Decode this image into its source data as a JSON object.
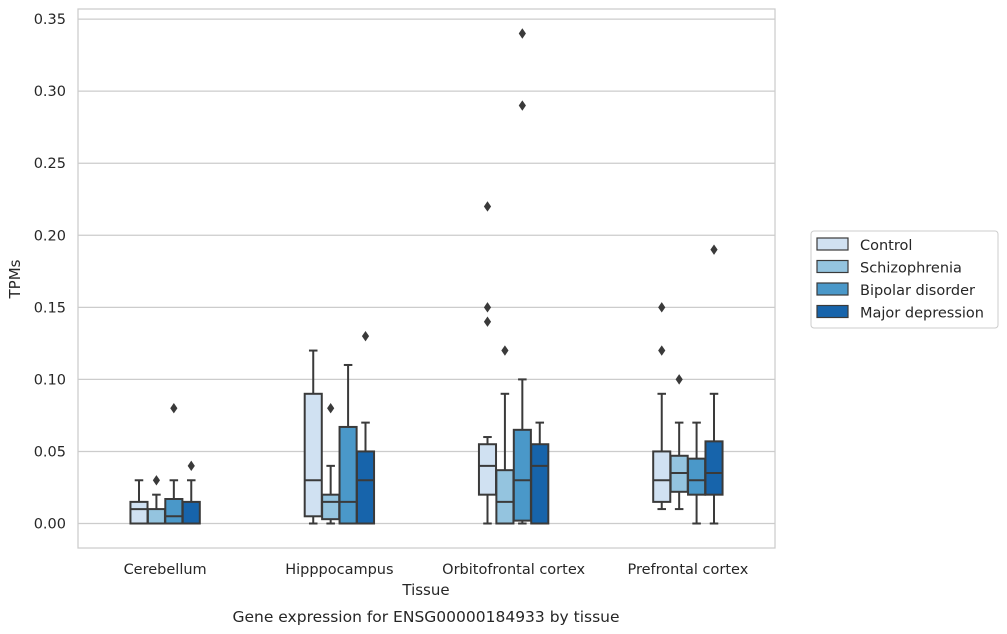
{
  "caption": "Gene expression for ENSG00000184933 by tissue",
  "chart_data": {
    "type": "boxplot",
    "xlabel": "Tissue",
    "ylabel": "TPMs",
    "ylim": [
      -0.017,
      0.357
    ],
    "yticks": [
      0.0,
      0.05,
      0.1,
      0.15,
      0.2,
      0.25,
      0.3,
      0.35
    ],
    "ytick_labels": [
      "0.00",
      "0.05",
      "0.10",
      "0.15",
      "0.20",
      "0.25",
      "0.30",
      "0.35"
    ],
    "grid": "horizontal",
    "legend_position": "right",
    "categories": [
      "Cerebellum",
      "Hipppocampus",
      "Orbitofrontal cortex",
      "Prefrontal cortex"
    ],
    "series": [
      {
        "name": "Control",
        "color": "#d0e1f2",
        "boxes": [
          {
            "whislo": 0.0,
            "q1": 0.0,
            "med": 0.01,
            "q3": 0.015,
            "whishi": 0.03,
            "fliers": []
          },
          {
            "whislo": 0.0,
            "q1": 0.005,
            "med": 0.03,
            "q3": 0.09,
            "whishi": 0.12,
            "fliers": []
          },
          {
            "whislo": 0.0,
            "q1": 0.02,
            "med": 0.04,
            "q3": 0.055,
            "whishi": 0.06,
            "fliers": [
              0.14,
              0.15,
              0.22
            ]
          },
          {
            "whislo": 0.01,
            "q1": 0.015,
            "med": 0.03,
            "q3": 0.05,
            "whishi": 0.09,
            "fliers": [
              0.12,
              0.15
            ]
          }
        ]
      },
      {
        "name": "Schizophrenia",
        "color": "#94c4df",
        "boxes": [
          {
            "whislo": 0.0,
            "q1": 0.0,
            "med": 0.0,
            "q3": 0.01,
            "whishi": 0.02,
            "fliers": [
              0.03
            ]
          },
          {
            "whislo": 0.0,
            "q1": 0.003,
            "med": 0.015,
            "q3": 0.02,
            "whishi": 0.04,
            "fliers": [
              0.08
            ]
          },
          {
            "whislo": 0.0,
            "q1": 0.0,
            "med": 0.015,
            "q3": 0.037,
            "whishi": 0.09,
            "fliers": [
              0.12
            ]
          },
          {
            "whislo": 0.01,
            "q1": 0.022,
            "med": 0.035,
            "q3": 0.047,
            "whishi": 0.07,
            "fliers": [
              0.1
            ]
          }
        ]
      },
      {
        "name": "Bipolar disorder",
        "color": "#4a98c9",
        "boxes": [
          {
            "whislo": 0.0,
            "q1": 0.0,
            "med": 0.005,
            "q3": 0.017,
            "whishi": 0.03,
            "fliers": [
              0.08
            ]
          },
          {
            "whislo": 0.0,
            "q1": 0.0,
            "med": 0.015,
            "q3": 0.067,
            "whishi": 0.11,
            "fliers": []
          },
          {
            "whislo": 0.0,
            "q1": 0.002,
            "med": 0.03,
            "q3": 0.065,
            "whishi": 0.1,
            "fliers": [
              0.29,
              0.34
            ]
          },
          {
            "whislo": 0.0,
            "q1": 0.02,
            "med": 0.03,
            "q3": 0.045,
            "whishi": 0.07,
            "fliers": []
          }
        ]
      },
      {
        "name": "Major depression",
        "color": "#1764ab",
        "boxes": [
          {
            "whislo": 0.0,
            "q1": 0.0,
            "med": 0.0,
            "q3": 0.015,
            "whishi": 0.03,
            "fliers": [
              0.04
            ]
          },
          {
            "whislo": 0.0,
            "q1": 0.0,
            "med": 0.03,
            "q3": 0.05,
            "whishi": 0.07,
            "fliers": [
              0.13
            ]
          },
          {
            "whislo": 0.0,
            "q1": 0.0,
            "med": 0.04,
            "q3": 0.055,
            "whishi": 0.07,
            "fliers": []
          },
          {
            "whislo": 0.0,
            "q1": 0.02,
            "med": 0.035,
            "q3": 0.057,
            "whishi": 0.09,
            "fliers": [
              0.19
            ]
          }
        ]
      }
    ]
  }
}
